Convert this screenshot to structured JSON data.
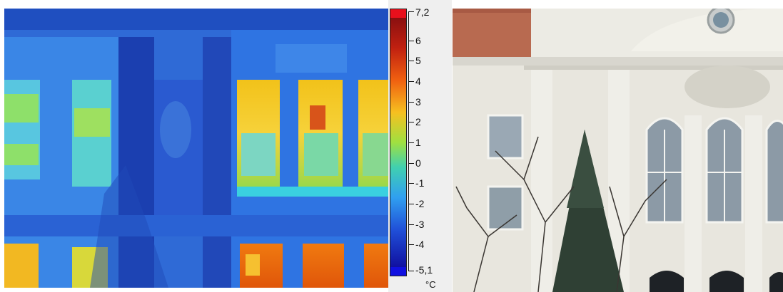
{
  "thermal_image": {
    "description_icon": "thermal-facade-image"
  },
  "color_scale": {
    "max_label": "7,2",
    "min_label": "-5,1",
    "tick_labels": [
      "6",
      "5",
      "4",
      "3",
      "2",
      "1",
      "0",
      "-1",
      "-2",
      "-3",
      "-4"
    ],
    "unit": "°C",
    "colors": {
      "top_cap": "#e8101c",
      "bottom_cap": "#1010e0"
    }
  },
  "photo": {
    "description_icon": "building-facade-photo"
  }
}
